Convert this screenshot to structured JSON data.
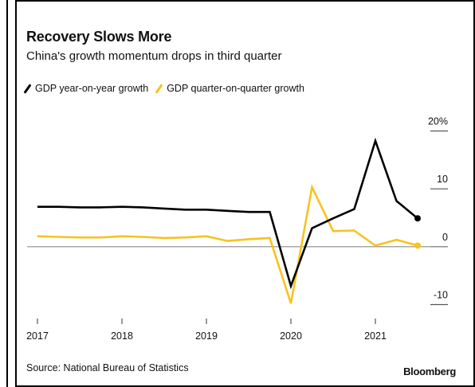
{
  "chart_data": {
    "type": "line",
    "title": "Recovery Slows More",
    "subtitle": "China's growth momentum drops in third quarter",
    "source": "Source: National Bureau of Statistics",
    "brand": "Bloomberg",
    "x": [
      "2017-Q1",
      "2017-Q2",
      "2017-Q3",
      "2017-Q4",
      "2018-Q1",
      "2018-Q2",
      "2018-Q3",
      "2018-Q4",
      "2019-Q1",
      "2019-Q2",
      "2019-Q3",
      "2019-Q4",
      "2020-Q1",
      "2020-Q2",
      "2020-Q3",
      "2020-Q4",
      "2021-Q1",
      "2021-Q2",
      "2021-Q3"
    ],
    "x_tick_labels": [
      "2017",
      "2018",
      "2019",
      "2020",
      "2021"
    ],
    "y_tick_labels": [
      "20%",
      "10",
      "0",
      "-10"
    ],
    "ylim": [
      -12,
      22
    ],
    "legend_position": "top-left",
    "grid": false,
    "zero_line": true,
    "series": [
      {
        "name": "GDP year-on-year growth",
        "color": "#000000",
        "values": [
          6.9,
          6.9,
          6.8,
          6.8,
          6.9,
          6.8,
          6.6,
          6.4,
          6.4,
          6.2,
          6.0,
          6.0,
          -6.8,
          3.2,
          4.9,
          6.5,
          18.3,
          7.9,
          4.9
        ]
      },
      {
        "name": "GDP quarter-on-quarter growth",
        "color": "#f7c31f",
        "values": [
          1.8,
          1.7,
          1.6,
          1.6,
          1.8,
          1.7,
          1.5,
          1.6,
          1.8,
          1.0,
          1.3,
          1.5,
          -9.8,
          10.3,
          2.7,
          2.8,
          0.2,
          1.2,
          0.2
        ]
      }
    ]
  }
}
